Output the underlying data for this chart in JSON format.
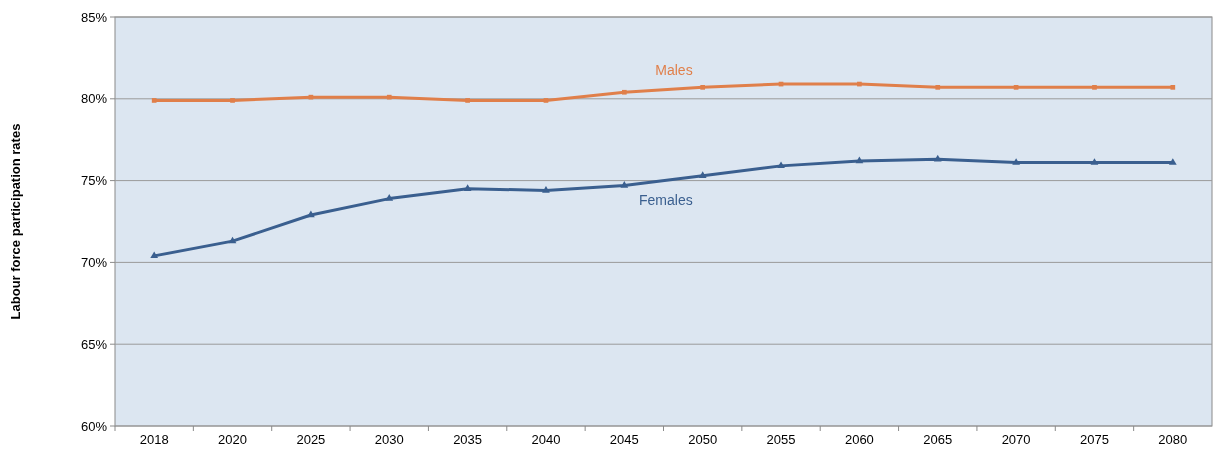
{
  "chart_data": {
    "type": "line",
    "ylabel": "Labour force participation rates",
    "categories": [
      "2018",
      "2020",
      "2025",
      "2030",
      "2035",
      "2040",
      "2045",
      "2050",
      "2055",
      "2060",
      "2065",
      "2070",
      "2075",
      "2080"
    ],
    "series": [
      {
        "name": "Males",
        "color": "#e07f4a",
        "marker": "square",
        "values": [
          79.9,
          79.9,
          80.1,
          80.1,
          79.9,
          79.9,
          80.4,
          80.7,
          80.9,
          80.9,
          80.7,
          80.7,
          80.7,
          80.7
        ]
      },
      {
        "name": "Females",
        "color": "#3a5f8f",
        "marker": "triangle",
        "values": [
          70.4,
          71.3,
          72.9,
          73.9,
          74.5,
          74.4,
          74.7,
          75.3,
          75.9,
          76.2,
          76.3,
          76.1,
          76.1,
          76.1
        ]
      }
    ],
    "ylim": [
      60,
      85
    ],
    "yticks": [
      {
        "value": 60,
        "label": "60%"
      },
      {
        "value": 65,
        "label": "65%"
      },
      {
        "value": 70,
        "label": "70%"
      },
      {
        "value": 75,
        "label": "75%"
      },
      {
        "value": 80,
        "label": "80%"
      },
      {
        "value": 85,
        "label": "85%"
      }
    ],
    "grid": "y"
  }
}
